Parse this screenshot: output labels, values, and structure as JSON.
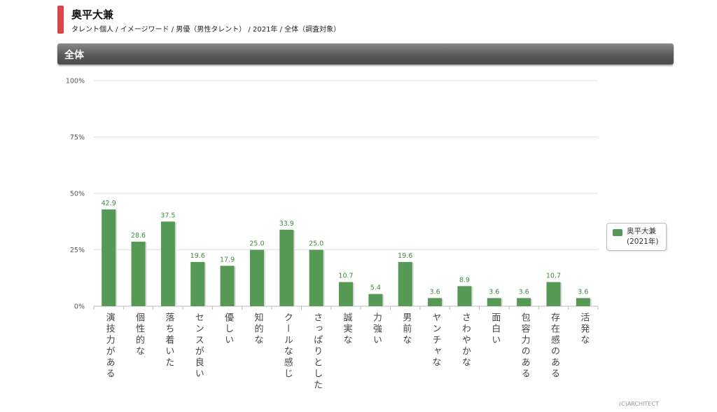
{
  "header": {
    "title": "奥平大兼",
    "subtitle": "タレント個人 / イメージワード / 男優（男性タレント） / 2021年 / 全体（調査対象）",
    "accent_color": "#d9454a"
  },
  "section": {
    "label": "全体"
  },
  "legend": {
    "name": "奥平大兼",
    "period": "(2021年)"
  },
  "footer": {
    "copyright": "(C)ARCHITECT"
  },
  "chart_data": {
    "type": "bar",
    "categories": [
      "演技力がある",
      "個性的な",
      "落ち着いた",
      "センスが良い",
      "優しい",
      "知的な",
      "クールな感じ",
      "さっぱりとした",
      "誠実な",
      "力強い",
      "男前な",
      "ヤンチャな",
      "さわやかな",
      "面白い",
      "包容力のある",
      "存在感のある",
      "活発な"
    ],
    "series": [
      {
        "name": "奥平大兼(2021年)",
        "color": "#559955",
        "values": [
          42.9,
          28.6,
          37.5,
          19.6,
          17.9,
          25.0,
          33.9,
          25.0,
          10.7,
          5.4,
          19.6,
          3.6,
          8.9,
          3.6,
          3.6,
          10.7,
          3.6
        ]
      }
    ],
    "value_labels": [
      "42.9",
      "28.6",
      "37.5",
      "19.6",
      "17.9",
      "25.0",
      "33.9",
      "25.0",
      "10.7",
      "5.4",
      "19.6",
      "3.6",
      "8.9",
      "3.6",
      "3.6",
      "10.7",
      "3.6"
    ],
    "ylim": [
      0,
      100
    ],
    "yticks": [
      "0%",
      "25%",
      "50%",
      "75%",
      "100%"
    ],
    "grid": true,
    "legend_position": "right"
  }
}
